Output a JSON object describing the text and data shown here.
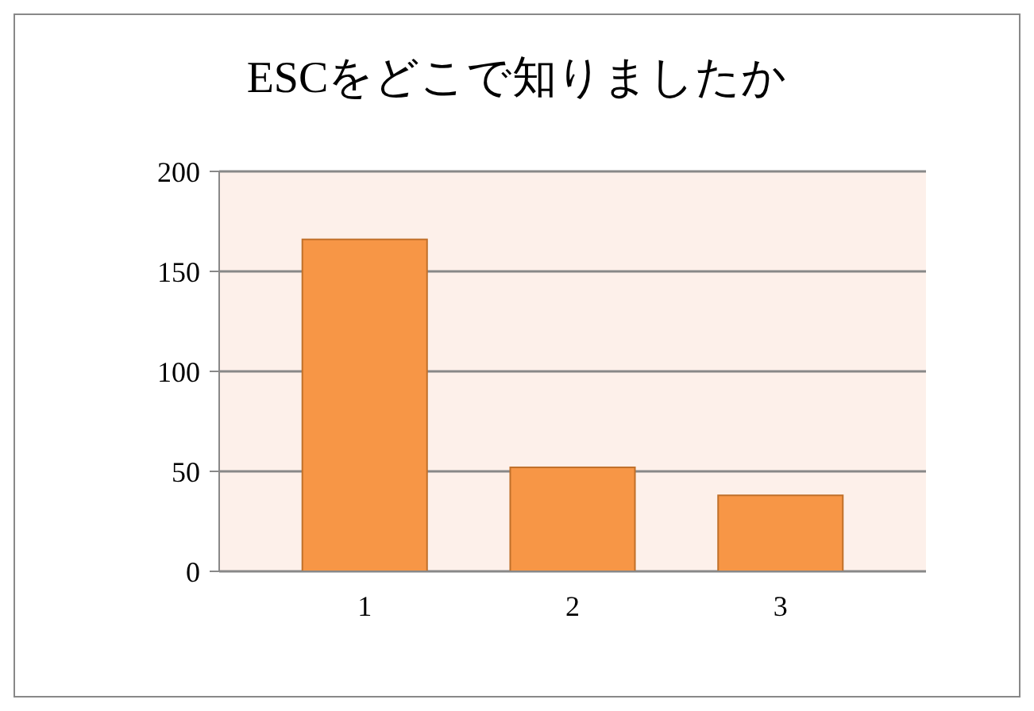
{
  "chart_data": {
    "type": "bar",
    "title": "ESCをどこで知りましたか",
    "categories": [
      "1",
      "2",
      "3"
    ],
    "values": [
      166,
      52,
      38
    ],
    "color": "#f79646",
    "ylim": [
      0,
      200
    ],
    "yticks": [
      0,
      50,
      100,
      150,
      200
    ],
    "grid": "y"
  }
}
